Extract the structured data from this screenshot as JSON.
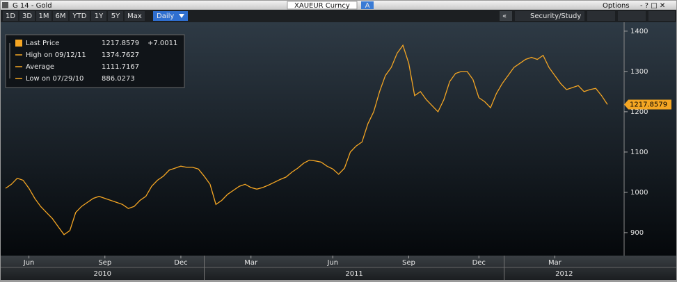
{
  "toolbar": {
    "security_title": "G 14 - Gold",
    "ticker": "XAUEUR Curncy",
    "ticker_mode": "A",
    "options": "Options",
    "ranges": [
      "1D",
      "3D",
      "1M",
      "6M",
      "YTD",
      "1Y",
      "5Y",
      "Max"
    ],
    "frequency": "Daily",
    "study": "Security/Study"
  },
  "chart_data": {
    "type": "line",
    "categories": [
      null,
      null,
      null,
      null,
      "Jun",
      null,
      null,
      null,
      null,
      null,
      null,
      null,
      null,
      null,
      null,
      null,
      null,
      "Sep",
      null,
      null,
      null,
      null,
      null,
      null,
      null,
      null,
      null,
      null,
      null,
      null,
      "Dec",
      null,
      null,
      null,
      null,
      null,
      null,
      null,
      null,
      null,
      null,
      null,
      "Mar",
      null,
      null,
      null,
      null,
      null,
      null,
      null,
      null,
      null,
      null,
      null,
      null,
      null,
      "Jun",
      null,
      null,
      null,
      null,
      null,
      null,
      null,
      null,
      null,
      null,
      null,
      null,
      "Sep",
      null,
      null,
      null,
      null,
      null,
      null,
      null,
      null,
      null,
      null,
      null,
      "Dec",
      null,
      null,
      null,
      null,
      null,
      null,
      null,
      null,
      null,
      null,
      null,
      null,
      "Mar",
      null,
      null,
      null,
      null,
      null,
      null,
      null,
      null,
      null
    ],
    "year_labels": [
      "2010",
      "2011",
      "2012"
    ],
    "series": [
      {
        "name": "Last Price",
        "color": "#f5a623",
        "values": [
          1010,
          1020,
          1035,
          1030,
          1010,
          985,
          965,
          950,
          935,
          915,
          895,
          905,
          950,
          965,
          975,
          985,
          990,
          985,
          980,
          975,
          970,
          960,
          965,
          980,
          990,
          1015,
          1030,
          1040,
          1055,
          1060,
          1065,
          1062,
          1062,
          1058,
          1040,
          1020,
          970,
          980,
          995,
          1005,
          1015,
          1020,
          1012,
          1008,
          1012,
          1018,
          1025,
          1032,
          1038,
          1050,
          1060,
          1072,
          1080,
          1078,
          1075,
          1065,
          1058,
          1045,
          1060,
          1100,
          1115,
          1125,
          1170,
          1200,
          1250,
          1290,
          1310,
          1345,
          1365,
          1320,
          1240,
          1250,
          1230,
          1215,
          1200,
          1230,
          1275,
          1295,
          1300,
          1300,
          1280,
          1235,
          1225,
          1210,
          1245,
          1270,
          1290,
          1310,
          1320,
          1330,
          1335,
          1330,
          1340,
          1310,
          1290,
          1270,
          1255,
          1260,
          1265,
          1250,
          1255,
          1258,
          1240,
          1218
        ]
      }
    ],
    "stats": [
      {
        "label": "Last Price",
        "value": 1217.8579,
        "change": {
          "value": 7.0011,
          "label": "+7.0011"
        }
      },
      {
        "label": "High on 09/12/11",
        "value": 1374.7627
      },
      {
        "label": "Average",
        "value": 1111.7167
      },
      {
        "label": "Low on 07/29/10",
        "value": 886.0273
      }
    ],
    "ylim": [
      843,
      1417
    ],
    "yticks": [
      900,
      1000,
      1100,
      1200,
      1300,
      1400
    ],
    "grid": false
  }
}
